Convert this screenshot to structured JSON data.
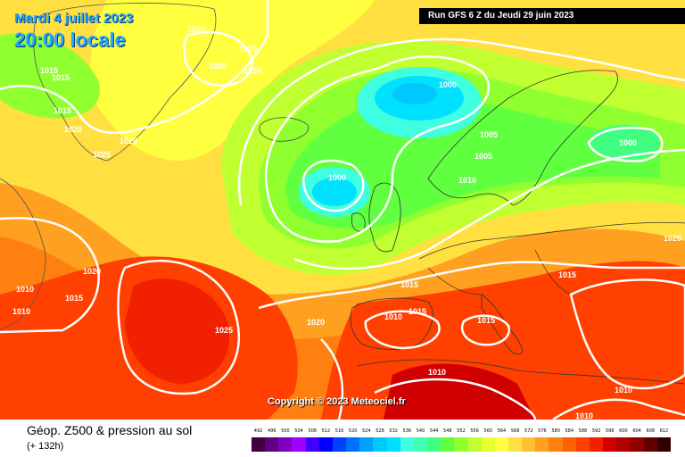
{
  "header": {
    "date": "Mardi 4 juillet 2023",
    "local_time": "20:00 locale",
    "run_info": "Run GFS 6 Z du Jeudi 29 juin 2023"
  },
  "copyright": "Copyright © 2023 Meteociel.fr",
  "footer": {
    "title": "Géop. Z500 & pression au sol",
    "subtitle": "(+ 132h)"
  },
  "legend": {
    "values": [
      "492",
      "496",
      "500",
      "504",
      "508",
      "512",
      "516",
      "520",
      "524",
      "528",
      "532",
      "536",
      "540",
      "544",
      "548",
      "552",
      "556",
      "560",
      "564",
      "568",
      "572",
      "576",
      "580",
      "584",
      "588",
      "592",
      "596",
      "600",
      "604",
      "608",
      "612"
    ],
    "colors": [
      "#400040",
      "#600080",
      "#8000c0",
      "#a000ff",
      "#4000ff",
      "#0000ff",
      "#0040ff",
      "#0070ff",
      "#00a0ff",
      "#00c8ff",
      "#00e0ff",
      "#40ffe0",
      "#40ffb0",
      "#40ff80",
      "#60ff40",
      "#90ff30",
      "#c0ff30",
      "#e8ff30",
      "#ffff40",
      "#ffe040",
      "#ffc030",
      "#ffa020",
      "#ff8010",
      "#ff6000",
      "#ff4000",
      "#f02000",
      "#d00000",
      "#b00000",
      "#900000",
      "#600000",
      "#300000"
    ]
  },
  "isobar_labels": [
    {
      "text": "1025"
    },
    {
      "text": "1020"
    },
    {
      "text": "1020"
    },
    {
      "text": "1020"
    },
    {
      "text": "1015"
    },
    {
      "text": "1015"
    },
    {
      "text": "1015"
    },
    {
      "text": "1020"
    },
    {
      "text": "1020"
    },
    {
      "text": "1025"
    },
    {
      "text": "1000"
    },
    {
      "text": "1005"
    },
    {
      "text": "1005"
    },
    {
      "text": "1000"
    },
    {
      "text": "1000"
    },
    {
      "text": "1010"
    },
    {
      "text": "1020"
    },
    {
      "text": "1010"
    },
    {
      "text": "1015"
    },
    {
      "text": "1010"
    },
    {
      "text": "1020"
    },
    {
      "text": "1025"
    },
    {
      "text": "1015"
    },
    {
      "text": "1010"
    },
    {
      "text": "1015"
    },
    {
      "text": "1015"
    },
    {
      "text": "1015"
    },
    {
      "text": "1020"
    },
    {
      "text": "1010"
    },
    {
      "text": "1010"
    },
    {
      "text": "1010"
    }
  ]
}
